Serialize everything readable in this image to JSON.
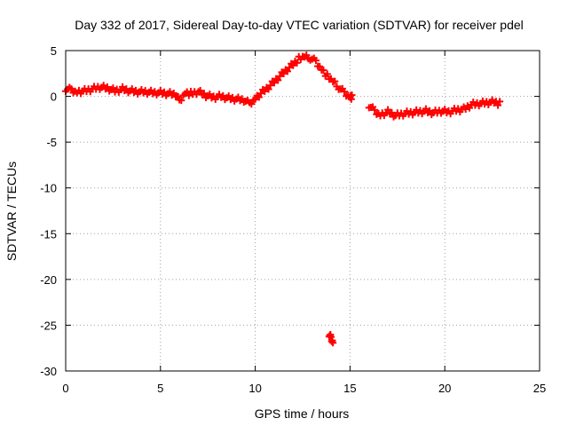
{
  "chart_data": {
    "type": "scatter",
    "title": "Day 332 of 2017, Sidereal Day-to-day VTEC variation (SDTVAR) for receiver pdel",
    "xlabel": "GPS time / hours",
    "ylabel": "SDTVAR / TECUs",
    "xlim": [
      0,
      25
    ],
    "ylim": [
      -30,
      5
    ],
    "xticks": [
      0,
      5,
      10,
      15,
      20,
      25
    ],
    "yticks": [
      -30,
      -25,
      -20,
      -15,
      -10,
      -5,
      0,
      5
    ],
    "grid": true,
    "marker": "plus",
    "series": [
      {
        "name": "SDTVAR",
        "color": "#ff0000",
        "segments": [
          {
            "x": [
              0.0,
              0.3,
              0.6,
              1.0,
              1.4,
              1.8,
              2.2,
              2.6,
              3.0,
              3.4,
              3.8,
              4.2,
              4.6,
              5.0,
              5.4,
              5.8,
              6.0,
              6.3,
              6.6,
              7.0,
              7.4,
              7.8,
              8.2,
              8.6,
              9.0,
              9.4,
              9.7,
              10.0,
              10.4,
              10.8,
              11.2,
              11.6,
              12.0,
              12.3,
              12.6,
              12.9,
              13.2,
              13.5,
              13.8,
              14.1,
              14.4,
              14.7,
              15.0,
              15.1
            ],
            "y": [
              0.8,
              0.7,
              0.5,
              0.6,
              0.8,
              1.0,
              0.9,
              0.6,
              0.8,
              0.6,
              0.5,
              0.5,
              0.4,
              0.4,
              0.3,
              0.2,
              -0.5,
              0.4,
              0.3,
              0.5,
              0.1,
              -0.1,
              0.0,
              -0.2,
              -0.3,
              -0.4,
              -0.8,
              -0.2,
              0.5,
              1.2,
              2.0,
              2.8,
              3.5,
              4.1,
              4.3,
              4.2,
              3.8,
              3.0,
              2.2,
              1.6,
              1.0,
              0.4,
              0.0,
              -0.1
            ]
          },
          {
            "x": [
              13.9,
              14.0,
              14.1
            ],
            "y": [
              -26.0,
              -26.4,
              -26.8
            ]
          },
          {
            "x": [
              16.0,
              16.3,
              16.6,
              17.0,
              17.4,
              17.8,
              18.2,
              18.6,
              19.0,
              19.4,
              19.8,
              20.2,
              20.6,
              21.0,
              21.4,
              21.8,
              22.2,
              22.6,
              22.9
            ],
            "y": [
              -1.0,
              -1.6,
              -2.0,
              -1.7,
              -2.1,
              -1.9,
              -1.8,
              -1.7,
              -1.6,
              -1.8,
              -1.6,
              -1.7,
              -1.5,
              -1.4,
              -0.9,
              -0.8,
              -0.7,
              -0.6,
              -0.8
            ]
          }
        ]
      }
    ]
  }
}
